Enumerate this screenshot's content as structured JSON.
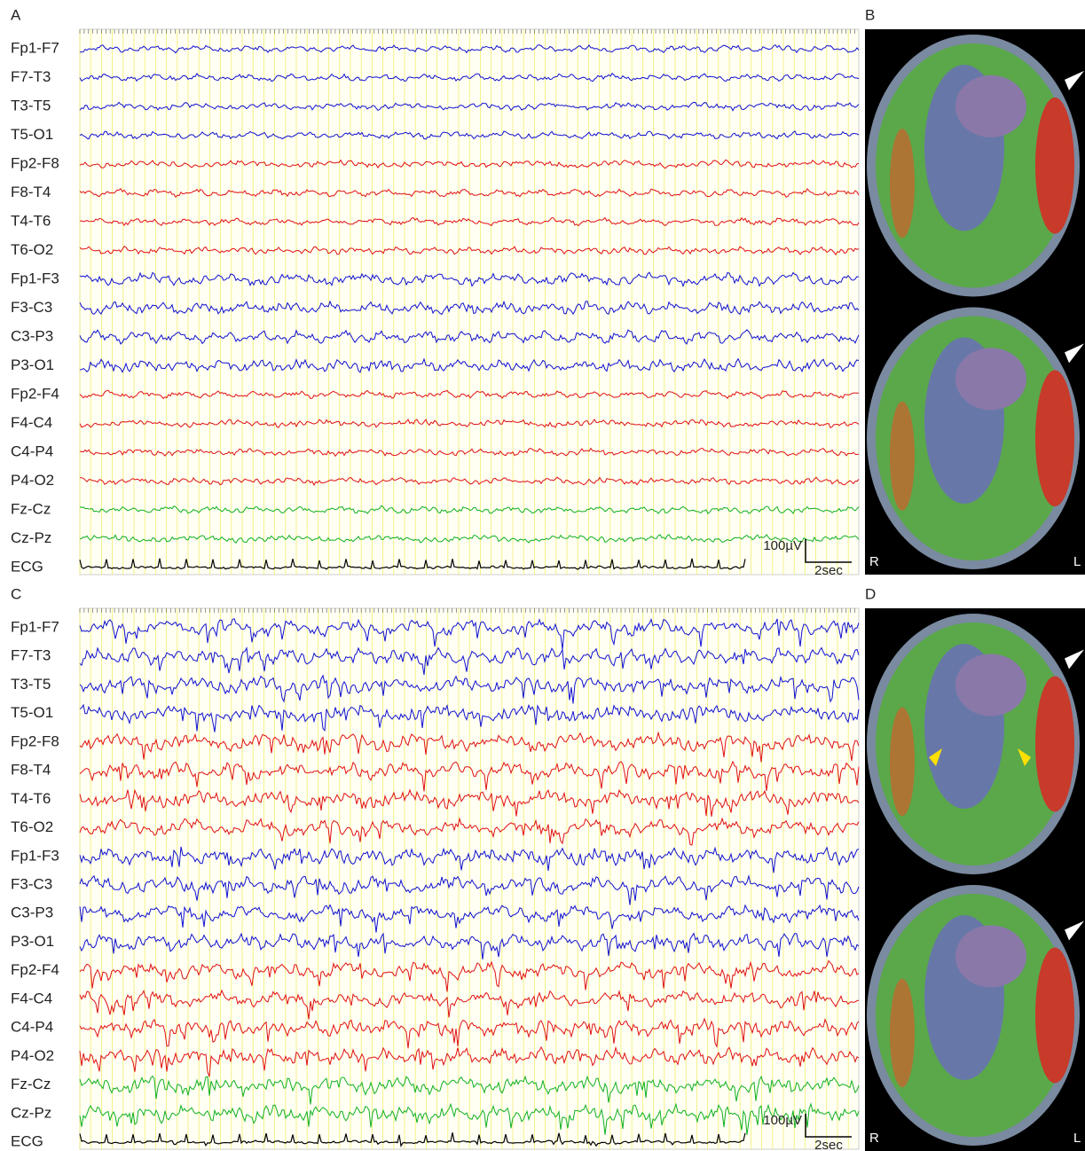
{
  "panels": [
    {
      "label": "A",
      "channels": [
        "Fp1-F7",
        "F7-T3",
        "T3-T5",
        "T5-O1",
        "Fp2-F8",
        "F8-T4",
        "T4-T6",
        "T6-O2",
        "Fp1-F3",
        "F3-C3",
        "C3-P3",
        "P3-O1",
        "Fp2-F4",
        "F4-C4",
        "C4-P4",
        "P4-O2",
        "Fz-Cz",
        "Cz-Pz",
        "ECG"
      ],
      "scale_amplitude": "100µV",
      "scale_time": "2sec"
    },
    {
      "label": "B",
      "left": "R",
      "right": "L"
    },
    {
      "label": "C",
      "channels": [
        "Fp1-F7",
        "F7-T3",
        "T3-T5",
        "T5-O1",
        "Fp2-F8",
        "F8-T4",
        "T4-T6",
        "T6-O2",
        "Fp1-F3",
        "F3-C3",
        "C3-P3",
        "P3-O1",
        "Fp2-F4",
        "F4-C4",
        "C4-P4",
        "P4-O2",
        "Fz-Cz",
        "Cz-Pz",
        "ECG"
      ],
      "scale_amplitude": "100µV",
      "scale_time": "2sec"
    },
    {
      "label": "D",
      "left": "R",
      "right": "L"
    }
  ]
}
